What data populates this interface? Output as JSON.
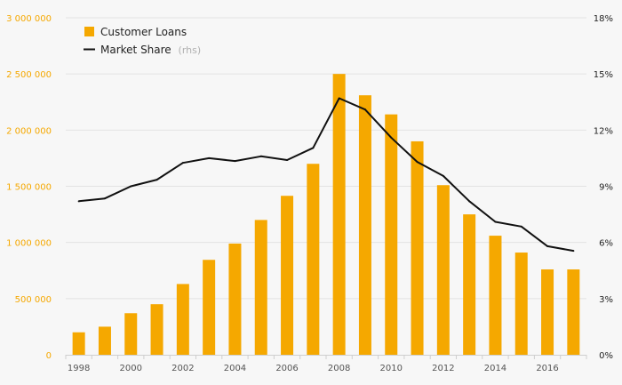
{
  "chart_data": {
    "type": "bar",
    "categories": [
      "1998",
      "1999",
      "2000",
      "2001",
      "2002",
      "2003",
      "2004",
      "2005",
      "2006",
      "2007",
      "2008",
      "2009",
      "2010",
      "2011",
      "2012",
      "2013",
      "2014",
      "2015",
      "2016",
      "2017"
    ],
    "x_tick_labels": [
      "1998",
      "2000",
      "2002",
      "2004",
      "2006",
      "2008",
      "2010",
      "2012",
      "2014",
      "2016"
    ],
    "series": [
      {
        "name": "Customer Loans",
        "type": "bar",
        "axis": "left",
        "color": "#f5a800",
        "values": [
          200000,
          250000,
          370000,
          450000,
          630000,
          845000,
          990000,
          1200000,
          1415000,
          1700000,
          2500000,
          2310000,
          2140000,
          1900000,
          1510000,
          1250000,
          1060000,
          910000,
          760000,
          760000
        ]
      },
      {
        "name": "Market Share",
        "name_suffix": "(rhs)",
        "type": "line",
        "axis": "right",
        "color": "#111111",
        "values": [
          8.2,
          8.35,
          9.0,
          9.35,
          10.25,
          10.5,
          10.35,
          10.6,
          10.4,
          11.05,
          13.7,
          13.1,
          11.6,
          10.3,
          9.55,
          8.2,
          7.1,
          6.85,
          5.8,
          5.55
        ]
      }
    ],
    "y_left": {
      "min": 0,
      "max": 3000000,
      "ticks": [
        0,
        500000,
        1000000,
        1500000,
        2000000,
        2500000,
        3000000
      ],
      "tick_labels": [
        "0",
        "500 000",
        "1 000 000",
        "1 500 000",
        "2 000 000",
        "2 500 000",
        "3 000 000"
      ],
      "color": "#f5a800"
    },
    "y_right": {
      "min": 0,
      "max": 18,
      "ticks": [
        0,
        3,
        6,
        9,
        12,
        15,
        18
      ],
      "tick_labels": [
        "0%",
        "3%",
        "6%",
        "9%",
        "12%",
        "15%",
        "18%"
      ],
      "color": "#222222"
    },
    "grid": true,
    "legend_position": "top-left"
  }
}
